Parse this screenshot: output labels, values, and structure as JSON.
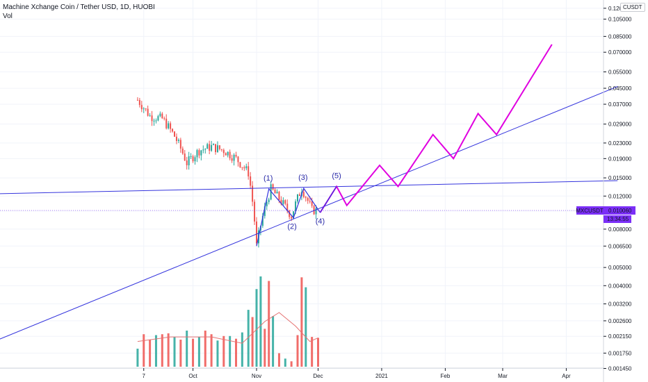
{
  "header": {
    "title": "Machine Xchange Coin / Tether USD, 1D, HUOBI",
    "volume_label": "Vol"
  },
  "currency_badge": "CUSDT",
  "price_axis": {
    "ticks": [
      "0.120000",
      "0.105000",
      "0.085000",
      "0.070000",
      "0.055000",
      "0.045000",
      "0.037000",
      "0.029000",
      "0.023000",
      "0.019000",
      "0.015000",
      "0.012000",
      "0.010000",
      "0.008000",
      "0.006500",
      "0.005000",
      "0.004000",
      "0.003200",
      "0.002600",
      "0.002150",
      "0.001750",
      "0.001450"
    ],
    "scale": "log"
  },
  "time_axis": {
    "ticks": [
      "7",
      "Oct",
      "Nov",
      "Dec",
      "2021",
      "Feb",
      "Mar",
      "Apr"
    ]
  },
  "price_tag": {
    "symbol": "MXCUSDT",
    "price": "0.010060",
    "countdown": "13:34:55",
    "color": "#7b2ff7"
  },
  "colors": {
    "up": "#26a69a",
    "down": "#ef5350",
    "trendline": "#3333dd",
    "projection": "#e000e0",
    "wave_label": "#2a2aa8"
  },
  "wave_labels": [
    "(1)",
    "(2)",
    "(3)",
    "(4)",
    "(5)"
  ],
  "chart_data": {
    "type": "candlestick",
    "title": "Machine Xchange Coin / Tether USD, 1D, HUOBI",
    "y_scale": "log",
    "ylim": [
      0.00135,
      0.13
    ],
    "x_range": [
      "2020-09-04",
      "2021-04-10"
    ],
    "price_series": [
      {
        "date": "2020-09-04",
        "close": 0.039
      },
      {
        "date": "2020-09-10",
        "close": 0.032
      },
      {
        "date": "2020-09-16",
        "close": 0.031
      },
      {
        "date": "2020-09-22",
        "close": 0.025
      },
      {
        "date": "2020-09-28",
        "close": 0.018
      },
      {
        "date": "2020-10-04",
        "close": 0.021
      },
      {
        "date": "2020-10-10",
        "close": 0.022
      },
      {
        "date": "2020-10-16",
        "close": 0.021
      },
      {
        "date": "2020-10-22",
        "close": 0.019
      },
      {
        "date": "2020-10-28",
        "close": 0.016
      },
      {
        "date": "2020-11-01",
        "close": 0.0065
      },
      {
        "date": "2020-11-08",
        "close": 0.0131
      },
      {
        "date": "2020-11-18",
        "close": 0.0094
      },
      {
        "date": "2020-11-23",
        "close": 0.0132
      },
      {
        "date": "2020-11-28",
        "close": 0.0101
      },
      {
        "date": "2020-12-01",
        "close": 0.0101
      }
    ],
    "wave_points": [
      {
        "label": "(1)",
        "date": "2020-11-07",
        "value": 0.0131
      },
      {
        "label": "(2)",
        "date": "2020-11-19",
        "value": 0.0092
      },
      {
        "label": "(3)",
        "date": "2020-11-24",
        "value": 0.0132
      },
      {
        "label": "(4)",
        "date": "2020-12-02",
        "value": 0.0098
      },
      {
        "label": "(5)",
        "date": "2020-12-10",
        "value": 0.0135
      }
    ],
    "projection_path": [
      {
        "date": "2020-11-24",
        "value": 0.0132
      },
      {
        "date": "2020-12-02",
        "value": 0.0098
      },
      {
        "date": "2020-12-10",
        "value": 0.0135
      },
      {
        "date": "2020-12-15",
        "value": 0.0107
      },
      {
        "date": "2020-12-31",
        "value": 0.0175
      },
      {
        "date": "2021-01-09",
        "value": 0.0135
      },
      {
        "date": "2021-01-26",
        "value": 0.0255
      },
      {
        "date": "2021-02-05",
        "value": 0.019
      },
      {
        "date": "2021-02-17",
        "value": 0.033
      },
      {
        "date": "2021-02-26",
        "value": 0.0255
      },
      {
        "date": "2021-03-25",
        "value": 0.077
      }
    ],
    "trendlines": [
      {
        "name": "support",
        "from": {
          "date": "2020-05-20",
          "value": 0.00138
        },
        "to": {
          "date": "2021-04-26",
          "value": 0.046
        }
      },
      {
        "name": "resistance",
        "from": {
          "date": "2020-05-20",
          "value": 0.0121
        },
        "to": {
          "date": "2021-04-26",
          "value": 0.0145
        }
      }
    ],
    "volume_scale_max": 100,
    "volume": [
      {
        "date": "2020-09-04",
        "v": 20,
        "up": true
      },
      {
        "date": "2020-09-07",
        "v": 36,
        "up": false
      },
      {
        "date": "2020-09-10",
        "v": 30,
        "up": false
      },
      {
        "date": "2020-09-13",
        "v": 35,
        "up": true
      },
      {
        "date": "2020-09-16",
        "v": 36,
        "up": false
      },
      {
        "date": "2020-09-19",
        "v": 37,
        "up": false
      },
      {
        "date": "2020-09-22",
        "v": 33,
        "up": true
      },
      {
        "date": "2020-09-25",
        "v": 30,
        "up": false
      },
      {
        "date": "2020-09-28",
        "v": 40,
        "up": true
      },
      {
        "date": "2020-10-01",
        "v": 31,
        "up": false
      },
      {
        "date": "2020-10-04",
        "v": 33,
        "up": true
      },
      {
        "date": "2020-10-07",
        "v": 40,
        "up": false
      },
      {
        "date": "2020-10-10",
        "v": 36,
        "up": false
      },
      {
        "date": "2020-10-13",
        "v": 29,
        "up": true
      },
      {
        "date": "2020-10-16",
        "v": 34,
        "up": false
      },
      {
        "date": "2020-10-19",
        "v": 34,
        "up": true
      },
      {
        "date": "2020-10-22",
        "v": 31,
        "up": false
      },
      {
        "date": "2020-10-25",
        "v": 38,
        "up": true
      },
      {
        "date": "2020-10-28",
        "v": 63,
        "up": true
      },
      {
        "date": "2020-10-30",
        "v": 55,
        "up": false
      },
      {
        "date": "2020-11-01",
        "v": 86,
        "up": true
      },
      {
        "date": "2020-11-03",
        "v": 100,
        "up": true
      },
      {
        "date": "2020-11-05",
        "v": 42,
        "up": false
      },
      {
        "date": "2020-11-07",
        "v": 95,
        "up": false
      },
      {
        "date": "2020-11-09",
        "v": 56,
        "up": true
      },
      {
        "date": "2020-11-12",
        "v": 15,
        "up": false
      },
      {
        "date": "2020-11-15",
        "v": 9,
        "up": true
      },
      {
        "date": "2020-11-18",
        "v": 6,
        "up": false
      },
      {
        "date": "2020-11-21",
        "v": 35,
        "up": false
      },
      {
        "date": "2020-11-23",
        "v": 99,
        "up": false
      },
      {
        "date": "2020-11-25",
        "v": 88,
        "up": true
      },
      {
        "date": "2020-11-28",
        "v": 33,
        "up": false
      },
      {
        "date": "2020-12-01",
        "v": 32,
        "up": false
      }
    ],
    "volume_ma": [
      {
        "date": "2020-09-04",
        "v": 28
      },
      {
        "date": "2020-09-20",
        "v": 33
      },
      {
        "date": "2020-10-10",
        "v": 33
      },
      {
        "date": "2020-10-25",
        "v": 26
      },
      {
        "date": "2020-11-05",
        "v": 50
      },
      {
        "date": "2020-11-12",
        "v": 60
      },
      {
        "date": "2020-11-20",
        "v": 45
      },
      {
        "date": "2020-11-27",
        "v": 28
      },
      {
        "date": "2020-12-01",
        "v": 32
      }
    ]
  }
}
